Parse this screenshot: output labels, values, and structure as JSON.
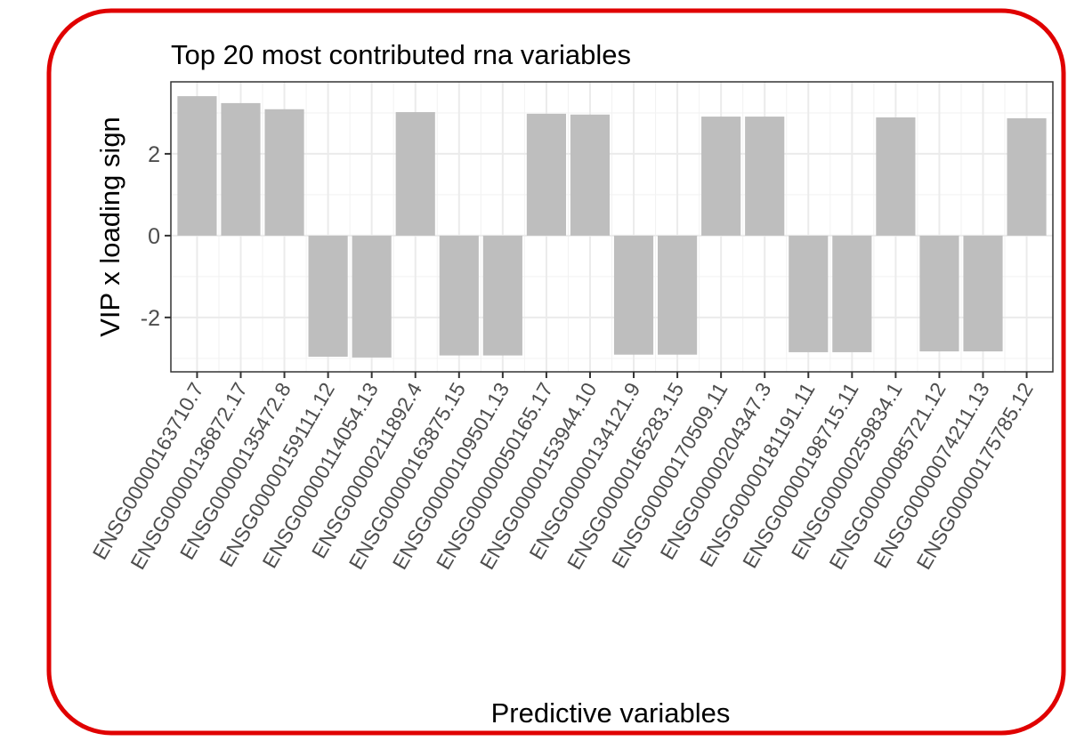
{
  "chart_data": {
    "type": "bar",
    "title": "Top 20 most contributed rna variables",
    "x_label": "Predictive variables",
    "y_label": "VIP x loading sign",
    "categories": [
      "ENSG00000163710.7",
      "ENSG00000136872.17",
      "ENSG00000135472.8",
      "ENSG00000159111.12",
      "ENSG00000114054.13",
      "ENSG00000211892.4",
      "ENSG00000163875.15",
      "ENSG00000109501.13",
      "ENSG00000050165.17",
      "ENSG00000153944.10",
      "ENSG00000134121.9",
      "ENSG00000165283.15",
      "ENSG00000170509.11",
      "ENSG00000204347.3",
      "ENSG00000181191.11",
      "ENSG00000198715.11",
      "ENSG00000259834.1",
      "ENSG00000085721.12",
      "ENSG00000074211.13",
      "ENSG00000175785.12"
    ],
    "values": [
      3.41,
      3.24,
      3.09,
      -2.96,
      -2.98,
      3.02,
      -2.93,
      -2.93,
      2.98,
      2.96,
      -2.91,
      -2.91,
      2.91,
      2.91,
      -2.85,
      -2.85,
      2.89,
      -2.83,
      -2.83,
      2.87
    ],
    "color": "#bebebe",
    "ylim": [
      -3.33,
      3.76
    ],
    "yticks": [
      -2,
      0,
      2
    ],
    "minor_yticks": [
      -3,
      -1,
      1,
      3
    ],
    "grid": true
  }
}
